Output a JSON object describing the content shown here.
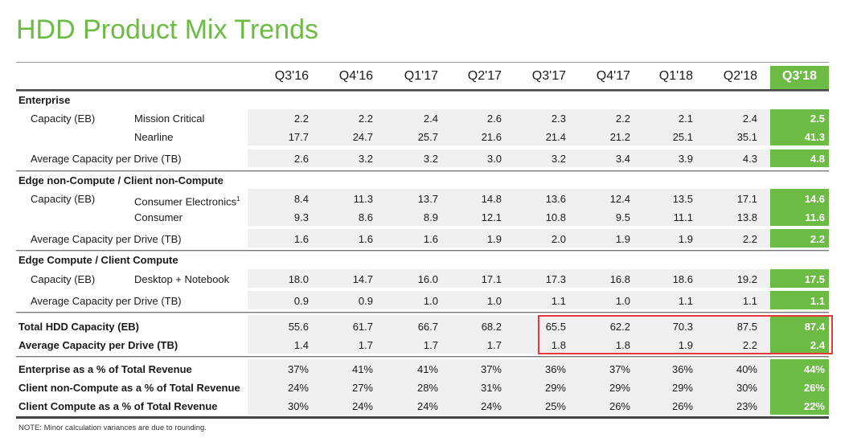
{
  "title": "HDD Product Mix Trends",
  "columns": [
    "Q3'16",
    "Q4'16",
    "Q1'17",
    "Q2'17",
    "Q3'17",
    "Q4'17",
    "Q1'18",
    "Q2'18",
    "Q3'18"
  ],
  "current_column": "Q3'18",
  "colors": {
    "accent": "#6cbb45",
    "highlight_box": "#e8383d",
    "band": "#f0f0f0"
  },
  "sections": [
    {
      "title": "Enterprise",
      "rows": [
        {
          "label": "Capacity (EB)",
          "sublabel": "Mission Critical",
          "values": [
            "2.2",
            "2.2",
            "2.4",
            "2.6",
            "2.3",
            "2.2",
            "2.1",
            "2.4",
            "2.5"
          ]
        },
        {
          "label": "",
          "sublabel": "Nearline",
          "values": [
            "17.7",
            "24.7",
            "25.7",
            "21.6",
            "21.4",
            "21.2",
            "25.1",
            "35.1",
            "41.3"
          ]
        },
        {
          "label": "Average Capacity per Drive (TB)",
          "sublabel": "",
          "values": [
            "2.6",
            "3.2",
            "3.2",
            "3.0",
            "3.2",
            "3.4",
            "3.9",
            "4.3",
            "4.8"
          ]
        }
      ]
    },
    {
      "title": "Edge non-Compute / Client non-Compute",
      "rows": [
        {
          "label": "Capacity (EB)",
          "sublabel": "Consumer Electronics",
          "sup": "1",
          "values": [
            "8.4",
            "11.3",
            "13.7",
            "14.8",
            "13.6",
            "12.4",
            "13.5",
            "17.1",
            "14.6"
          ]
        },
        {
          "label": "",
          "sublabel": "Consumer",
          "values": [
            "9.3",
            "8.6",
            "8.9",
            "12.1",
            "10.8",
            "9.5",
            "11.1",
            "13.8",
            "11.6"
          ]
        },
        {
          "label": "Average Capacity per Drive (TB)",
          "sublabel": "",
          "values": [
            "1.6",
            "1.6",
            "1.6",
            "1.9",
            "2.0",
            "1.9",
            "1.9",
            "2.2",
            "2.2"
          ]
        }
      ]
    },
    {
      "title": "Edge Compute / Client Compute",
      "rows": [
        {
          "label": "Capacity (EB)",
          "sublabel": "Desktop + Notebook",
          "values": [
            "18.0",
            "14.7",
            "16.0",
            "17.1",
            "17.3",
            "16.8",
            "18.6",
            "19.2",
            "17.5"
          ]
        },
        {
          "label": "Average Capacity per Drive (TB)",
          "sublabel": "",
          "values": [
            "0.9",
            "0.9",
            "1.0",
            "1.0",
            "1.1",
            "1.0",
            "1.1",
            "1.1",
            "1.1"
          ]
        }
      ]
    },
    {
      "title": "",
      "rows": [
        {
          "label": "Total  HDD Capacity (EB)",
          "bold": true,
          "values": [
            "55.6",
            "61.7",
            "66.7",
            "68.2",
            "65.5",
            "62.2",
            "70.3",
            "87.5",
            "87.4"
          ]
        },
        {
          "label": "Average Capacity per Drive (TB)",
          "bold": true,
          "values": [
            "1.4",
            "1.7",
            "1.7",
            "1.7",
            "1.8",
            "1.8",
            "1.9",
            "2.2",
            "2.4"
          ]
        }
      ]
    },
    {
      "title": "",
      "rows": [
        {
          "label": "Enterprise as a % of Total Revenue",
          "bold": true,
          "values": [
            "37%",
            "41%",
            "41%",
            "37%",
            "36%",
            "37%",
            "36%",
            "40%",
            "44%"
          ]
        },
        {
          "label": "Client non-Compute as a % of Total Revenue",
          "bold": true,
          "values": [
            "24%",
            "27%",
            "28%",
            "31%",
            "29%",
            "29%",
            "29%",
            "30%",
            "26%"
          ]
        },
        {
          "label": "Client Compute as a % of Total Revenue",
          "bold": true,
          "values": [
            "30%",
            "24%",
            "24%",
            "24%",
            "25%",
            "26%",
            "26%",
            "23%",
            "22%"
          ]
        }
      ]
    }
  ],
  "note": "NOTE: Minor calculation variances are due to rounding."
}
